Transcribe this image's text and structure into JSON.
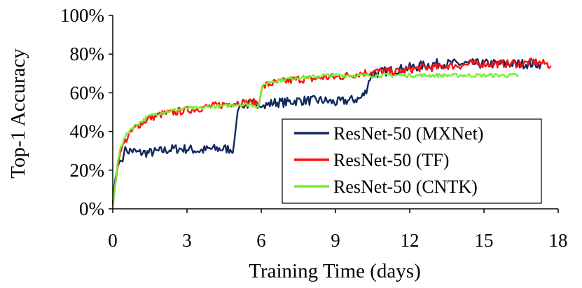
{
  "chart_data": {
    "type": "line",
    "title": "",
    "xlabel": "Training Time (days)",
    "ylabel": "Top-1 Accuracy",
    "xlim": [
      0,
      18
    ],
    "ylim": [
      0,
      100
    ],
    "x_ticks": [
      0,
      3,
      6,
      9,
      12,
      15,
      18
    ],
    "x_tick_labels": [
      "0",
      "3",
      "6",
      "9",
      "12",
      "15",
      "18"
    ],
    "y_ticks": [
      0,
      20,
      40,
      60,
      80,
      100
    ],
    "y_tick_labels": [
      "0%",
      "20%",
      "40%",
      "60%",
      "80%",
      "100%"
    ],
    "grid": false,
    "legend_position": "right",
    "series": [
      {
        "name": "ResNet-50 (MXNet)",
        "color": "#12295e",
        "noise": 2.5,
        "x": [
          0,
          0.1,
          0.2,
          0.3,
          0.4,
          0.5,
          0.6,
          0.8,
          1.0,
          1.5,
          2.0,
          2.5,
          3.0,
          3.5,
          4.0,
          4.5,
          4.9,
          5.05,
          5.15,
          5.3,
          5.6,
          6.0,
          6.1,
          6.5,
          7.0,
          7.5,
          8.0,
          8.5,
          9.0,
          9.5,
          10.0,
          10.2,
          10.4,
          10.6,
          11.0,
          11.5,
          12.0,
          12.5,
          13.0,
          13.5,
          14.0,
          14.5,
          15.0,
          15.5,
          16.0,
          16.5,
          17.0,
          17.3
        ],
        "y": [
          3,
          15,
          22,
          25,
          27,
          30,
          30,
          30,
          29,
          29,
          30,
          31,
          31,
          30,
          31,
          31,
          31,
          52,
          53,
          54,
          54,
          55,
          53,
          55,
          55,
          56,
          56,
          56,
          55,
          56,
          57,
          60,
          68,
          70,
          71,
          72,
          73,
          74,
          75,
          75,
          75,
          75,
          75,
          75,
          75,
          75,
          75,
          75
        ]
      },
      {
        "name": "ResNet-50 (TF)",
        "color": "#ff1010",
        "noise": 2.0,
        "x": [
          0,
          0.1,
          0.2,
          0.3,
          0.5,
          0.7,
          1.0,
          1.5,
          2.0,
          2.5,
          3.0,
          3.5,
          4.0,
          4.5,
          5.0,
          5.5,
          5.9,
          6.0,
          6.2,
          6.5,
          7.0,
          7.5,
          8.0,
          8.5,
          9.0,
          9.5,
          10.0,
          10.5,
          11.0,
          11.5,
          12.0,
          12.5,
          13.0,
          13.5,
          14.0,
          14.5,
          15.0,
          15.5,
          16.0,
          16.5,
          17.0,
          17.5,
          17.7
        ],
        "y": [
          1,
          12,
          22,
          29,
          35,
          39,
          43,
          47,
          49,
          50,
          51,
          52,
          53,
          54,
          55,
          55,
          55,
          62,
          64,
          65,
          66,
          67,
          67,
          68,
          68,
          69,
          70,
          71,
          71,
          71,
          72,
          73,
          73,
          74,
          74,
          75,
          75,
          75,
          75,
          75,
          76,
          75,
          74
        ]
      },
      {
        "name": "ResNet-50 (CNTK)",
        "color": "#77ee33",
        "noise": 1.0,
        "x": [
          0,
          0.1,
          0.2,
          0.3,
          0.5,
          0.7,
          1.0,
          1.5,
          2.0,
          2.5,
          3.0,
          3.5,
          4.0,
          4.5,
          5.0,
          5.5,
          5.9,
          6.0,
          6.2,
          6.5,
          7.0,
          7.5,
          8.0,
          8.5,
          9.0,
          9.5,
          10.0,
          10.5,
          11.0,
          11.5,
          12.0,
          12.5,
          13.0,
          13.5,
          14.0,
          14.5,
          15.0,
          15.5,
          16.0,
          16.4
        ],
        "y": [
          1,
          12,
          24,
          31,
          37,
          41,
          44,
          48,
          50,
          51,
          52,
          52,
          53,
          53,
          54,
          54,
          53,
          62,
          65,
          66,
          67,
          68,
          68,
          69,
          69,
          69,
          69,
          69,
          69,
          69,
          69,
          69,
          69,
          69,
          69,
          69,
          69,
          69,
          69,
          69
        ]
      }
    ]
  }
}
